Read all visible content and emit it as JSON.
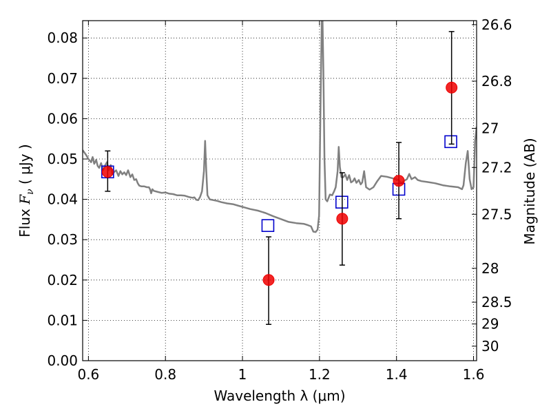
{
  "chart_data": {
    "type": "scatter",
    "xlabel": "Wavelength  λ (μm)",
    "ylabel": "Flux  F_ν  ( μJy )",
    "ylabel_parts": {
      "pre": "Flux  ",
      "var": "F",
      "sub": "ν",
      "post": "  ( μJy )"
    },
    "y2label": "Magnitude (AB)",
    "xlim": [
      0.585,
      1.608
    ],
    "ylim": [
      0.0,
      0.0843
    ],
    "grid": true,
    "x_ticks": [
      0.6,
      0.8,
      1.0,
      1.2,
      1.4,
      1.6
    ],
    "x_tick_labels": [
      "0.6",
      "0.8",
      "1",
      "1.2",
      "1.4",
      "1.6"
    ],
    "y_ticks": [
      0.0,
      0.01,
      0.02,
      0.03,
      0.04,
      0.05,
      0.06,
      0.07,
      0.08
    ],
    "y_tick_labels": [
      "0.00",
      "0.01",
      "0.02",
      "0.03",
      "0.04",
      "0.05",
      "0.06",
      "0.07",
      "0.08"
    ],
    "y2_ticks": [
      {
        "label": "26.6",
        "flux": 0.0833
      },
      {
        "label": "26.8",
        "flux": 0.0693
      },
      {
        "label": "27",
        "flux": 0.0576
      },
      {
        "label": "27.2",
        "flux": 0.0479
      },
      {
        "label": "27.5",
        "flux": 0.0363
      },
      {
        "label": "28",
        "flux": 0.0229
      },
      {
        "label": "28.5",
        "flux": 0.0145
      },
      {
        "label": "29",
        "flux": 0.0091
      },
      {
        "label": "30",
        "flux": 0.0036
      }
    ],
    "series": [
      {
        "kind": "spectrum_line",
        "color": "#808080",
        "points": [
          [
            0.585,
            0.0522
          ],
          [
            0.594,
            0.051
          ],
          [
            0.6,
            0.05
          ],
          [
            0.607,
            0.0492
          ],
          [
            0.611,
            0.0505
          ],
          [
            0.615,
            0.0488
          ],
          [
            0.62,
            0.0498
          ],
          [
            0.624,
            0.0483
          ],
          [
            0.628,
            0.0478
          ],
          [
            0.633,
            0.049
          ],
          [
            0.638,
            0.0472
          ],
          [
            0.642,
            0.0482
          ],
          [
            0.648,
            0.0492
          ],
          [
            0.653,
            0.0472
          ],
          [
            0.658,
            0.0485
          ],
          [
            0.662,
            0.0462
          ],
          [
            0.667,
            0.0468
          ],
          [
            0.672,
            0.0472
          ],
          [
            0.678,
            0.0458
          ],
          [
            0.683,
            0.047
          ],
          [
            0.688,
            0.0462
          ],
          [
            0.693,
            0.0467
          ],
          [
            0.698,
            0.046
          ],
          [
            0.703,
            0.0472
          ],
          [
            0.709,
            0.0455
          ],
          [
            0.714,
            0.0462
          ],
          [
            0.719,
            0.0448
          ],
          [
            0.724,
            0.045
          ],
          [
            0.728,
            0.044
          ],
          [
            0.732,
            0.0434
          ],
          [
            0.738,
            0.0432
          ],
          [
            0.745,
            0.0432
          ],
          [
            0.752,
            0.043
          ],
          [
            0.757,
            0.043
          ],
          [
            0.76,
            0.0425
          ],
          [
            0.763,
            0.0415
          ],
          [
            0.766,
            0.0425
          ],
          [
            0.77,
            0.0421
          ],
          [
            0.778,
            0.0419
          ],
          [
            0.79,
            0.0416
          ],
          [
            0.8,
            0.0417
          ],
          [
            0.81,
            0.0414
          ],
          [
            0.82,
            0.0413
          ],
          [
            0.83,
            0.041
          ],
          [
            0.84,
            0.041
          ],
          [
            0.85,
            0.0409
          ],
          [
            0.86,
            0.0406
          ],
          [
            0.87,
            0.0404
          ],
          [
            0.875,
            0.0405
          ],
          [
            0.88,
            0.0399
          ],
          [
            0.885,
            0.0398
          ],
          [
            0.89,
            0.0406
          ],
          [
            0.895,
            0.042
          ],
          [
            0.9,
            0.047
          ],
          [
            0.903,
            0.0545
          ],
          [
            0.906,
            0.047
          ],
          [
            0.909,
            0.041
          ],
          [
            0.915,
            0.04
          ],
          [
            0.925,
            0.0398
          ],
          [
            0.935,
            0.0396
          ],
          [
            0.945,
            0.0393
          ],
          [
            0.96,
            0.039
          ],
          [
            0.975,
            0.0388
          ],
          [
            0.99,
            0.0384
          ],
          [
            1.005,
            0.038
          ],
          [
            1.02,
            0.0376
          ],
          [
            1.04,
            0.0372
          ],
          [
            1.06,
            0.0366
          ],
          [
            1.08,
            0.0358
          ],
          [
            1.1,
            0.0351
          ],
          [
            1.12,
            0.0344
          ],
          [
            1.14,
            0.0341
          ],
          [
            1.16,
            0.0339
          ],
          [
            1.17,
            0.0336
          ],
          [
            1.178,
            0.0333
          ],
          [
            1.184,
            0.032
          ],
          [
            1.19,
            0.0319
          ],
          [
            1.195,
            0.0325
          ],
          [
            1.199,
            0.036
          ],
          [
            1.203,
            0.065
          ],
          [
            1.206,
            0.0843
          ],
          [
            1.208,
            0.0843
          ],
          [
            1.21,
            0.072
          ],
          [
            1.213,
            0.05
          ],
          [
            1.216,
            0.04
          ],
          [
            1.22,
            0.0395
          ],
          [
            1.227,
            0.0412
          ],
          [
            1.233,
            0.041
          ],
          [
            1.238,
            0.042
          ],
          [
            1.242,
            0.043
          ],
          [
            1.247,
            0.047
          ],
          [
            1.25,
            0.053
          ],
          [
            1.253,
            0.048
          ],
          [
            1.257,
            0.0455
          ],
          [
            1.262,
            0.0455
          ],
          [
            1.267,
            0.0462
          ],
          [
            1.272,
            0.0448
          ],
          [
            1.277,
            0.046
          ],
          [
            1.282,
            0.0442
          ],
          [
            1.287,
            0.0445
          ],
          [
            1.291,
            0.0452
          ],
          [
            1.296,
            0.0441
          ],
          [
            1.302,
            0.0448
          ],
          [
            1.307,
            0.0437
          ],
          [
            1.311,
            0.0442
          ],
          [
            1.316,
            0.047
          ],
          [
            1.321,
            0.043
          ],
          [
            1.33,
            0.0424
          ],
          [
            1.34,
            0.043
          ],
          [
            1.35,
            0.0445
          ],
          [
            1.36,
            0.0458
          ],
          [
            1.375,
            0.0456
          ],
          [
            1.39,
            0.0452
          ],
          [
            1.405,
            0.0448
          ],
          [
            1.413,
            0.044
          ],
          [
            1.42,
            0.0446
          ],
          [
            1.427,
            0.045
          ],
          [
            1.433,
            0.0463
          ],
          [
            1.439,
            0.045
          ],
          [
            1.448,
            0.0455
          ],
          [
            1.455,
            0.0448
          ],
          [
            1.465,
            0.0445
          ],
          [
            1.48,
            0.0443
          ],
          [
            1.5,
            0.044
          ],
          [
            1.52,
            0.0435
          ],
          [
            1.54,
            0.0432
          ],
          [
            1.56,
            0.043
          ],
          [
            1.57,
            0.0425
          ],
          [
            1.574,
            0.0435
          ],
          [
            1.58,
            0.049
          ],
          [
            1.585,
            0.052
          ],
          [
            1.59,
            0.045
          ],
          [
            1.595,
            0.0425
          ],
          [
            1.6,
            0.043
          ],
          [
            1.604,
            0.0545
          ],
          [
            1.608,
            0.058
          ]
        ]
      },
      {
        "kind": "model_squares",
        "color": "#0000cc",
        "points": [
          [
            0.65,
            0.0468
          ],
          [
            1.066,
            0.0335
          ],
          [
            1.258,
            0.0393
          ],
          [
            1.406,
            0.0425
          ],
          [
            1.541,
            0.0543
          ]
        ]
      },
      {
        "kind": "observed_points",
        "color": "#ee0000",
        "points": [
          {
            "x": 0.65,
            "y": 0.0468,
            "yerr_low": 0.042,
            "yerr_high": 0.052
          },
          {
            "x": 1.068,
            "y": 0.02,
            "yerr_low": 0.009,
            "yerr_high": 0.0307
          },
          {
            "x": 1.259,
            "y": 0.0352,
            "yerr_low": 0.0237,
            "yerr_high": 0.0466
          },
          {
            "x": 1.406,
            "y": 0.0446,
            "yerr_low": 0.0352,
            "yerr_high": 0.0541
          },
          {
            "x": 1.543,
            "y": 0.0677,
            "yerr_low": 0.0537,
            "yerr_high": 0.0816
          }
        ]
      }
    ]
  }
}
